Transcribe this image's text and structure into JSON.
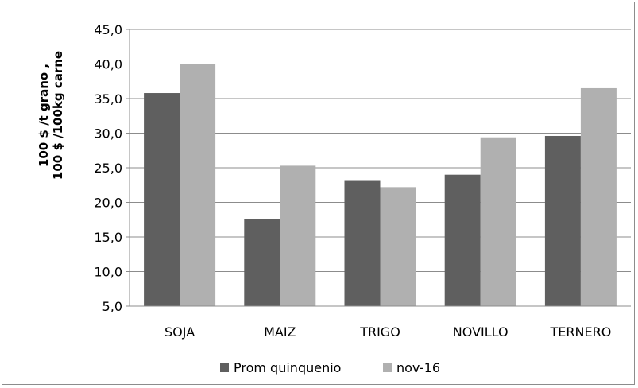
{
  "chart_data": {
    "type": "bar",
    "title": "",
    "ylabel_lines": [
      "100 $ /t grano ,",
      "100 $ /100kg  carne"
    ],
    "xlabel": "",
    "categories": [
      "SOJA",
      "MAIZ",
      "TRIGO",
      "NOVILLO",
      "TERNERO"
    ],
    "series": [
      {
        "name": "Prom quinquenio",
        "color": "#5f5f5f",
        "values": [
          35.8,
          17.6,
          23.1,
          24.0,
          29.6
        ]
      },
      {
        "name": "nov-16",
        "color": "#b0b0b0",
        "values": [
          40.0,
          25.3,
          22.2,
          29.4,
          36.5
        ]
      }
    ],
    "ylim": [
      5.0,
      45.0
    ],
    "yticks": [
      "5,0",
      "10,0",
      "15,0",
      "20,0",
      "25,0",
      "30,0",
      "35,0",
      "40,0",
      "45,0"
    ],
    "grid": true,
    "legend_position": "bottom"
  }
}
